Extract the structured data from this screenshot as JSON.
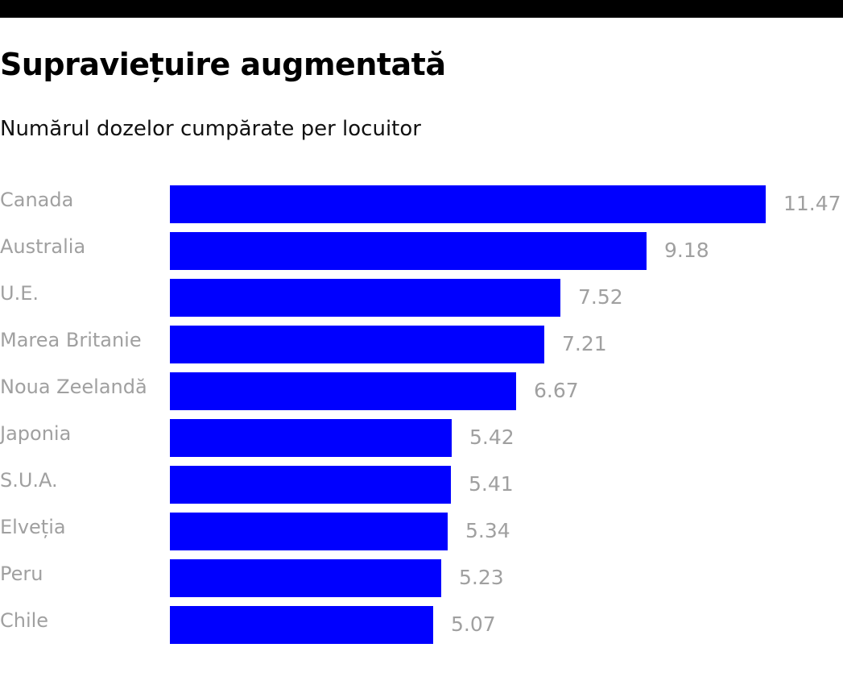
{
  "header": {
    "title": "Supraviețuire augmentată",
    "subtitle": "Numărul dozelor cumpărate per locuitor"
  },
  "colors": {
    "bar": "#0000ff",
    "label": "#a0a0a0",
    "topbar": "#000000"
  },
  "chart_data": {
    "type": "bar",
    "orientation": "horizontal",
    "title": "Supraviețuire augmentată",
    "subtitle": "Numărul dozelor cumpărate per locuitor",
    "xlabel": "",
    "ylabel": "",
    "categories": [
      "Canada",
      "Australia",
      "U.E.",
      "Marea Britanie",
      "Noua Zeelandă",
      "Japonia",
      "S.U.A.",
      "Elveția",
      "Peru",
      "Chile"
    ],
    "values": [
      11.47,
      9.18,
      7.52,
      7.21,
      6.67,
      5.42,
      5.41,
      5.34,
      5.23,
      5.07
    ],
    "value_labels": [
      "11.47",
      "9.18",
      "7.52",
      "7.21",
      "6.67",
      "5.42",
      "5.41",
      "5.34",
      "5.23",
      "5.07"
    ],
    "xlim": [
      0,
      11.47
    ],
    "grid": false,
    "legend": null
  }
}
